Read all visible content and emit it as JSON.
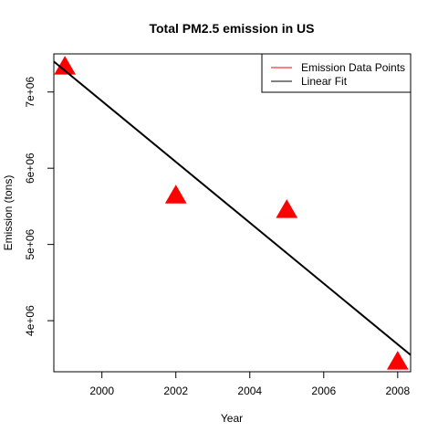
{
  "chart_data": {
    "type": "scatter",
    "title": "Total PM2.5 emission in US",
    "xlabel": "Year",
    "ylabel": "Emission (tons)",
    "xlim": [
      1998.7,
      2008.35
    ],
    "ylim": [
      3330000,
      7500000
    ],
    "x_ticks": [
      2000,
      2002,
      2004,
      2006,
      2008
    ],
    "x_tick_labels": [
      "2000",
      "2002",
      "2004",
      "2006",
      "2008"
    ],
    "y_ticks": [
      4000000,
      5000000,
      6000000,
      7000000
    ],
    "y_tick_labels": [
      "4e+06",
      "5e+06",
      "6e+06",
      "7e+06"
    ],
    "grid": false,
    "legend_position": "top-right",
    "series": [
      {
        "name": "Emission Data Points",
        "kind": "points",
        "marker": "filled-triangle",
        "color": "#ff0000",
        "x": [
          1999,
          2002,
          2005,
          2008
        ],
        "y": [
          7330000,
          5640000,
          5450000,
          3460000
        ]
      },
      {
        "name": "Linear Fit",
        "kind": "line",
        "color": "#000000",
        "x": [
          1998.7,
          2008.35
        ],
        "y": [
          7400000,
          3550000
        ]
      }
    ],
    "legend": [
      {
        "label": "Emission Data Points",
        "color": "#ff0000"
      },
      {
        "label": "Linear Fit",
        "color": "#000000"
      }
    ]
  }
}
